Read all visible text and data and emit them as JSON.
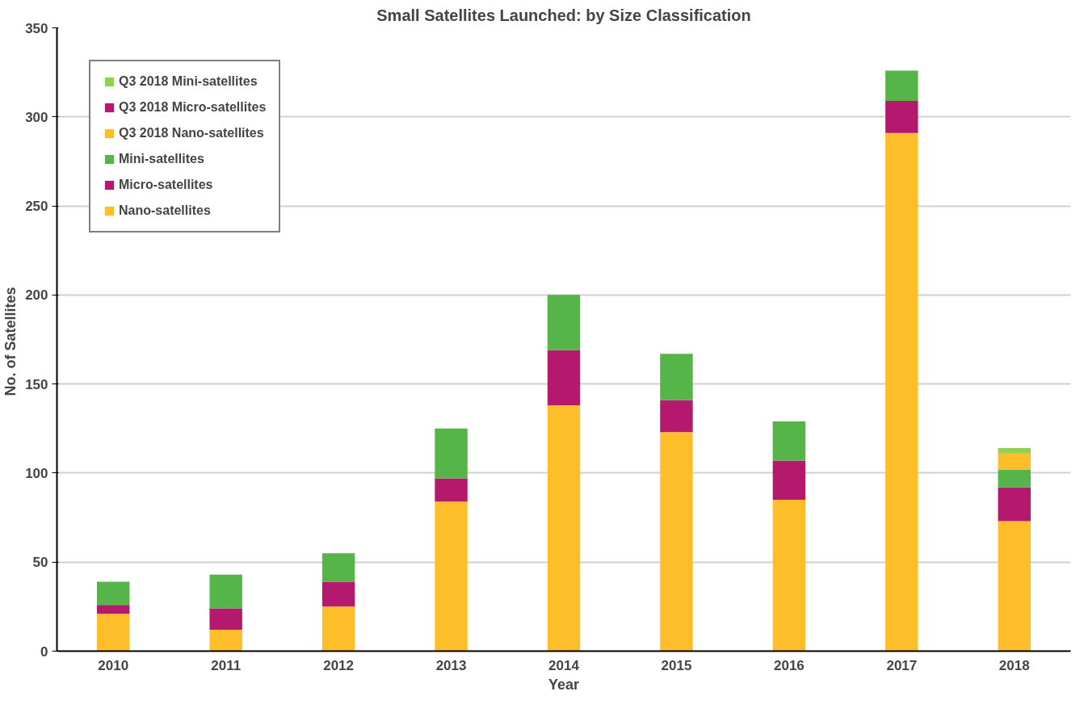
{
  "chart_data": {
    "type": "bar",
    "title": "Small Satellites Launched: by Size Classification",
    "xlabel": "Year",
    "ylabel": "No.  of Satellites",
    "categories": [
      "2010",
      "2011",
      "2012",
      "2013",
      "2014",
      "2015",
      "2016",
      "2017",
      "2018"
    ],
    "stacked": true,
    "ylim": [
      0,
      350
    ],
    "yticks": [
      0,
      50,
      100,
      150,
      200,
      250,
      300,
      350
    ],
    "grid": "y",
    "legend": "top left",
    "series": [
      {
        "name": "Nano-satellites",
        "color": "#fdbe2a",
        "values": [
          21,
          12,
          25,
          84,
          138,
          123,
          85,
          291,
          73
        ]
      },
      {
        "name": "Micro-satellites",
        "color": "#b5196d",
        "values": [
          5,
          12,
          14,
          13,
          31,
          18,
          22,
          18,
          19
        ]
      },
      {
        "name": "Mini-satellites",
        "color": "#55b548",
        "values": [
          13,
          19,
          16,
          28,
          31,
          26,
          22,
          17,
          10
        ]
      },
      {
        "name": "Q3 2018 Nano-satellites",
        "color": "#fdbe2a",
        "values": [
          null,
          null,
          null,
          null,
          null,
          null,
          null,
          null,
          9
        ]
      },
      {
        "name": "Q3 2018 Micro-satellites",
        "color": "#b5196d",
        "values": [
          null,
          null,
          null,
          null,
          null,
          null,
          null,
          null,
          0
        ]
      },
      {
        "name": "Q3 2018 Mini-satellites",
        "color": "#92d050",
        "values": [
          null,
          null,
          null,
          null,
          null,
          null,
          null,
          null,
          3
        ]
      }
    ]
  }
}
